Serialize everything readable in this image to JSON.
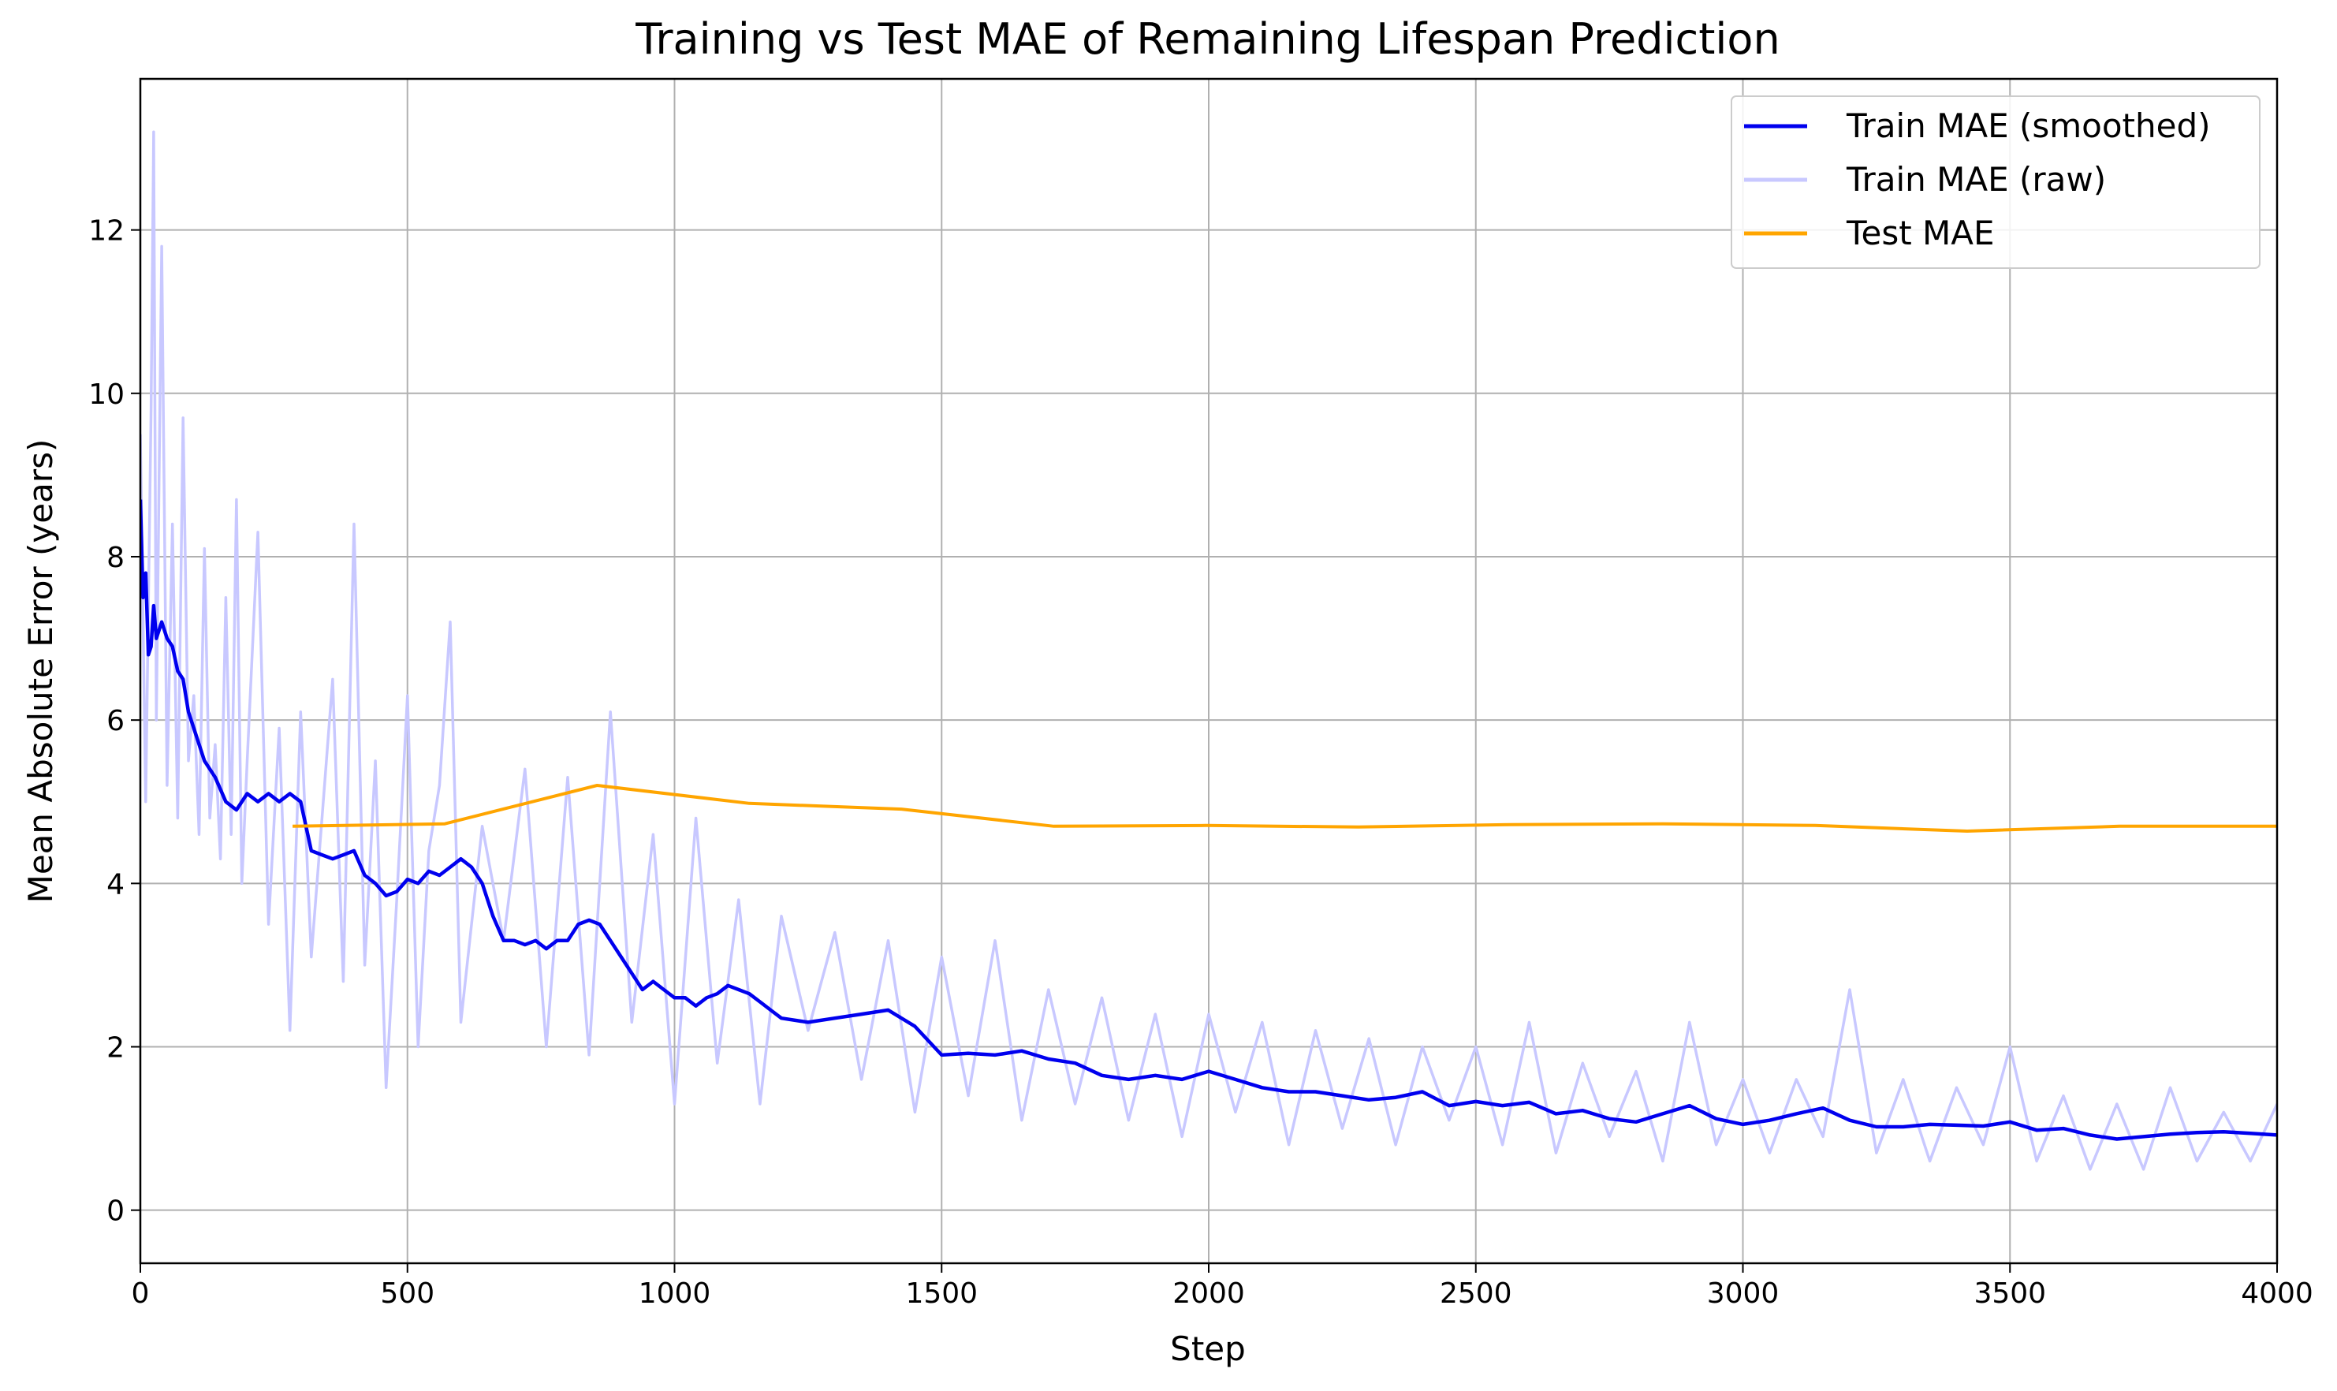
{
  "chart_data": {
    "type": "line",
    "title": "Training vs Test MAE of Remaining Lifespan Prediction",
    "xlabel": "Step",
    "ylabel": "Mean Absolute Error (years)",
    "xlim": [
      0,
      4000
    ],
    "ylim": [
      -0.65,
      13.85
    ],
    "xticks": [
      0,
      500,
      1000,
      1500,
      2000,
      2500,
      3000,
      3500,
      4000
    ],
    "yticks": [
      0,
      2,
      4,
      6,
      8,
      10,
      12
    ],
    "grid": true,
    "legend_position": "top-right",
    "series": [
      {
        "name": "Train MAE (smoothed)",
        "color": "#0000ee",
        "x": [
          0,
          5,
          10,
          15,
          20,
          25,
          30,
          40,
          50,
          60,
          70,
          80,
          90,
          100,
          120,
          140,
          160,
          180,
          200,
          220,
          240,
          260,
          280,
          300,
          320,
          340,
          360,
          380,
          400,
          420,
          440,
          460,
          480,
          500,
          520,
          540,
          560,
          580,
          600,
          620,
          640,
          660,
          680,
          700,
          720,
          740,
          760,
          780,
          800,
          820,
          840,
          860,
          880,
          900,
          920,
          940,
          960,
          980,
          1000,
          1020,
          1040,
          1060,
          1080,
          1100,
          1120,
          1140,
          1160,
          1180,
          1200,
          1250,
          1300,
          1350,
          1400,
          1450,
          1500,
          1550,
          1600,
          1650,
          1700,
          1750,
          1800,
          1850,
          1900,
          1950,
          2000,
          2050,
          2100,
          2150,
          2200,
          2250,
          2300,
          2350,
          2400,
          2450,
          2500,
          2550,
          2600,
          2650,
          2700,
          2750,
          2800,
          2850,
          2900,
          2950,
          3000,
          3050,
          3100,
          3150,
          3200,
          3250,
          3300,
          3350,
          3400,
          3450,
          3500,
          3550,
          3600,
          3650,
          3700,
          3750,
          3800,
          3850,
          3900,
          3950,
          4000
        ],
        "values": [
          8.7,
          7.5,
          7.8,
          6.8,
          6.9,
          7.4,
          7.0,
          7.2,
          7.0,
          6.9,
          6.6,
          6.5,
          6.1,
          5.9,
          5.5,
          5.3,
          5.0,
          4.9,
          5.1,
          5.0,
          5.1,
          5.0,
          5.1,
          5.0,
          4.4,
          4.35,
          4.3,
          4.35,
          4.4,
          4.1,
          4.0,
          3.85,
          3.9,
          4.05,
          4.0,
          4.15,
          4.1,
          4.2,
          4.3,
          4.2,
          4.0,
          3.6,
          3.3,
          3.3,
          3.25,
          3.3,
          3.2,
          3.3,
          3.3,
          3.5,
          3.55,
          3.5,
          3.3,
          3.1,
          2.9,
          2.7,
          2.8,
          2.7,
          2.6,
          2.6,
          2.5,
          2.6,
          2.65,
          2.75,
          2.7,
          2.65,
          2.55,
          2.45,
          2.35,
          2.3,
          2.35,
          2.4,
          2.45,
          2.25,
          1.9,
          1.92,
          1.9,
          1.95,
          1.85,
          1.8,
          1.65,
          1.6,
          1.65,
          1.6,
          1.7,
          1.6,
          1.5,
          1.45,
          1.45,
          1.4,
          1.35,
          1.38,
          1.45,
          1.28,
          1.33,
          1.28,
          1.32,
          1.18,
          1.22,
          1.12,
          1.08,
          1.18,
          1.28,
          1.12,
          1.05,
          1.1,
          1.18,
          1.25,
          1.1,
          1.02,
          1.02,
          1.05,
          1.04,
          1.03,
          1.08,
          0.98,
          1.0,
          0.92,
          0.87,
          0.9,
          0.93,
          0.95,
          0.96,
          0.94,
          0.92
        ]
      },
      {
        "name": "Train MAE (raw)",
        "color": "#c8c8ff",
        "note_envelope": "high-variance raw per-step training loss; y values at x=0..4000",
        "x": [
          0,
          10,
          20,
          25,
          30,
          40,
          50,
          60,
          70,
          80,
          90,
          100,
          110,
          120,
          130,
          140,
          150,
          160,
          170,
          180,
          190,
          200,
          220,
          240,
          260,
          280,
          300,
          320,
          340,
          360,
          380,
          400,
          420,
          440,
          460,
          480,
          500,
          520,
          540,
          560,
          580,
          600,
          640,
          680,
          720,
          760,
          800,
          840,
          880,
          920,
          960,
          1000,
          1040,
          1080,
          1120,
          1160,
          1200,
          1250,
          1300,
          1350,
          1400,
          1450,
          1500,
          1550,
          1600,
          1650,
          1700,
          1750,
          1800,
          1850,
          1900,
          1950,
          2000,
          2050,
          2100,
          2150,
          2200,
          2250,
          2300,
          2350,
          2400,
          2450,
          2500,
          2550,
          2600,
          2650,
          2700,
          2750,
          2800,
          2850,
          2900,
          2950,
          3000,
          3050,
          3100,
          3150,
          3200,
          3250,
          3300,
          3350,
          3400,
          3450,
          3500,
          3550,
          3600,
          3650,
          3700,
          3750,
          3800,
          3850,
          3900,
          3950,
          4000
        ],
        "values": [
          9.5,
          5.0,
          9.8,
          13.2,
          6.0,
          11.8,
          5.2,
          8.4,
          4.8,
          9.7,
          5.5,
          6.3,
          4.6,
          8.1,
          4.8,
          5.7,
          4.3,
          7.5,
          4.6,
          8.7,
          4.0,
          5.5,
          8.3,
          3.5,
          5.9,
          2.2,
          6.1,
          3.1,
          4.8,
          6.5,
          2.8,
          8.4,
          3.0,
          5.5,
          1.5,
          3.8,
          6.3,
          2.0,
          4.4,
          5.2,
          7.2,
          2.3,
          4.7,
          3.3,
          5.4,
          2.0,
          5.3,
          1.9,
          6.1,
          2.3,
          4.6,
          1.3,
          4.8,
          1.8,
          3.8,
          1.3,
          3.6,
          2.2,
          3.4,
          1.6,
          3.3,
          1.2,
          3.1,
          1.4,
          3.3,
          1.1,
          2.7,
          1.3,
          2.6,
          1.1,
          2.4,
          0.9,
          2.4,
          1.2,
          2.3,
          0.8,
          2.2,
          1.0,
          2.1,
          0.8,
          2.0,
          1.1,
          2.0,
          0.8,
          2.3,
          0.7,
          1.8,
          0.9,
          1.7,
          0.6,
          2.3,
          0.8,
          1.6,
          0.7,
          1.6,
          0.9,
          2.7,
          0.7,
          1.6,
          0.6,
          1.5,
          0.8,
          2.0,
          0.6,
          1.4,
          0.5,
          1.3,
          0.5,
          1.5,
          0.6,
          1.2,
          0.6,
          1.3
        ]
      },
      {
        "name": "Test MAE",
        "color": "#ffa500",
        "x": [
          285,
          570,
          855,
          1140,
          1425,
          1710,
          1995,
          2280,
          2565,
          2850,
          3135,
          3420,
          3705,
          4000
        ],
        "values": [
          4.7,
          4.73,
          5.2,
          4.98,
          4.91,
          4.7,
          4.71,
          4.69,
          4.72,
          4.73,
          4.71,
          4.64,
          4.7,
          4.7
        ]
      }
    ]
  }
}
